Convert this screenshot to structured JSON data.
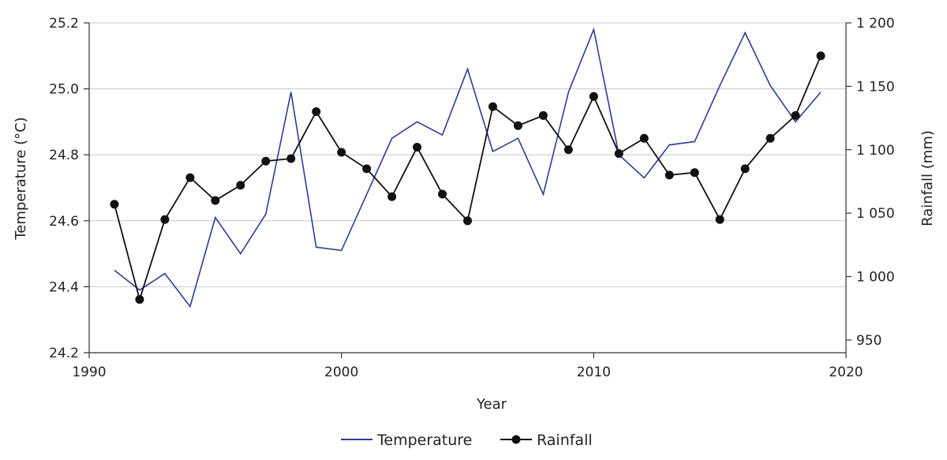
{
  "chart_data": {
    "type": "line",
    "xlabel": "Year",
    "ylabel_left": "Temperature (°C)",
    "ylabel_right": "Rainfall (mm)",
    "xlim": [
      1990,
      2020
    ],
    "ylim_left": [
      24.2,
      25.2
    ],
    "ylim_right": [
      940,
      1200
    ],
    "x_ticks": [
      "1990",
      "2000",
      "2010",
      "2020"
    ],
    "y_ticks_left": [
      "24.2",
      "24.4",
      "24.6",
      "24.8",
      "25.0",
      "25.2"
    ],
    "y_ticks_right": [
      "950",
      "1 000",
      "1 050",
      "1 100",
      "1 150",
      "1 200"
    ],
    "grid": "horizontal",
    "legend_position": "bottom",
    "x": [
      1991,
      1992,
      1993,
      1994,
      1995,
      1996,
      1997,
      1998,
      1999,
      2000,
      2001,
      2002,
      2003,
      2004,
      2005,
      2006,
      2007,
      2008,
      2009,
      2010,
      2011,
      2012,
      2013,
      2014,
      2015,
      2016,
      2017,
      2018,
      2019
    ],
    "series": [
      {
        "name": "Temperature",
        "axis": "left",
        "color": "#2E3C93",
        "marker": "none",
        "values": [
          24.45,
          24.39,
          24.44,
          24.34,
          24.61,
          24.5,
          24.62,
          24.99,
          24.52,
          24.51,
          24.68,
          24.85,
          24.9,
          24.86,
          25.06,
          24.81,
          24.85,
          24.68,
          24.99,
          25.18,
          24.8,
          24.73,
          24.83,
          24.84,
          25.01,
          25.17,
          25.01,
          24.9,
          24.99
        ]
      },
      {
        "name": "Rainfall",
        "axis": "right",
        "color": "#111111",
        "marker": "circle",
        "values": [
          1057,
          982,
          1045,
          1078,
          1060,
          1072,
          1091,
          1093,
          1130,
          1098,
          1085,
          1063,
          1102,
          1065,
          1044,
          1134,
          1119,
          1127,
          1100,
          1142,
          1097,
          1109,
          1080,
          1082,
          1045,
          1085,
          1109,
          1127,
          1174
        ]
      }
    ]
  },
  "colors": {
    "temperature_line": "#2E3C93",
    "rainfall_line": "#111111",
    "axis": "#333333",
    "grid": "#C8C8C8"
  }
}
